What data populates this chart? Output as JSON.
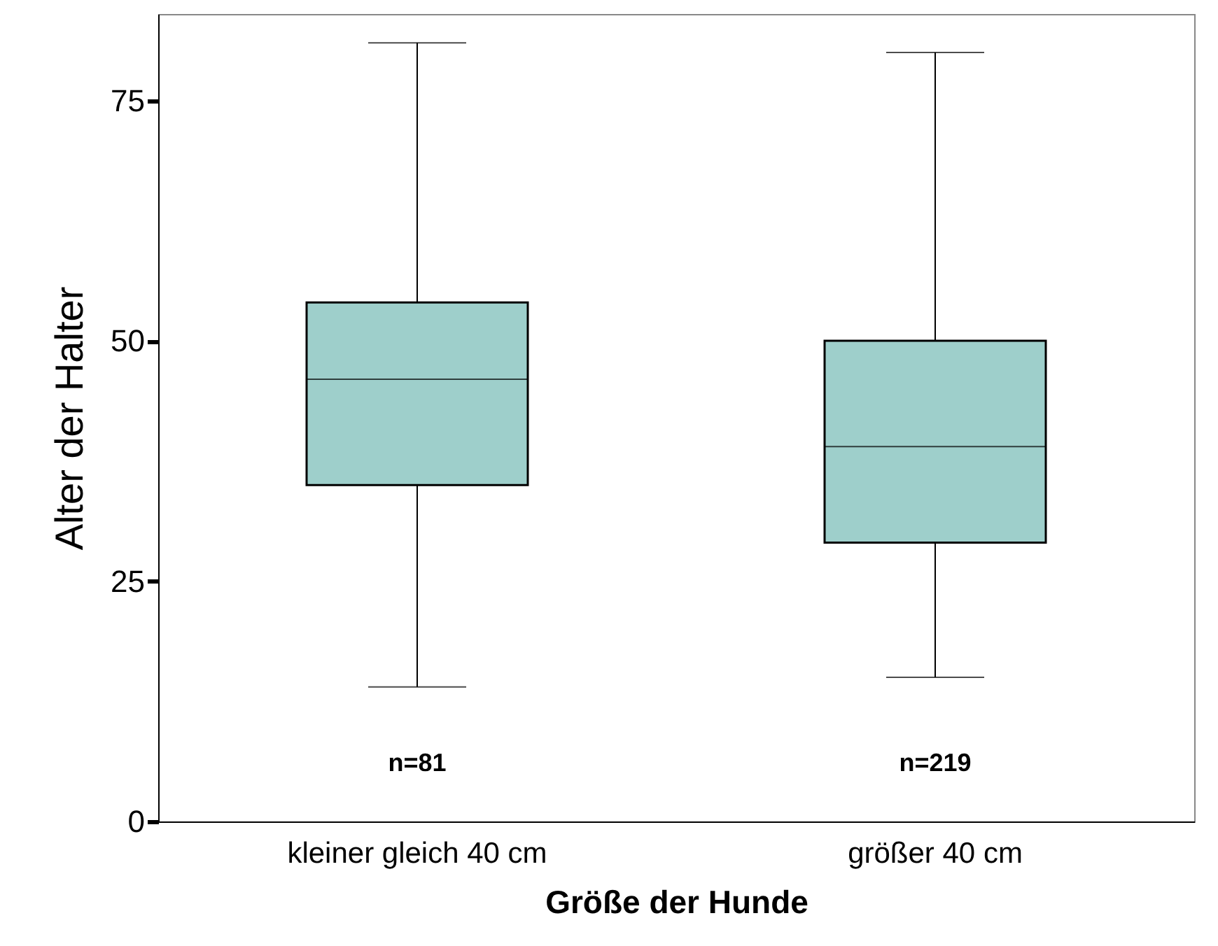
{
  "chart_data": {
    "type": "box",
    "xlabel": "Größe der Hunde",
    "ylabel": "Alter der Halter",
    "categories": [
      "kleiner gleich 40 cm",
      "größer 40 cm"
    ],
    "boxes": [
      {
        "low": 14,
        "q1": 35,
        "median": 46,
        "q3": 54,
        "high": 81
      },
      {
        "low": 15,
        "q1": 29,
        "median": 39,
        "q3": 50,
        "high": 80
      }
    ],
    "color": "#9ecfcb",
    "ylim": [
      0,
      84
    ],
    "yticks": [
      0,
      25,
      50,
      75
    ],
    "grid": false,
    "annotations": [
      "n=81",
      "n=219"
    ]
  }
}
